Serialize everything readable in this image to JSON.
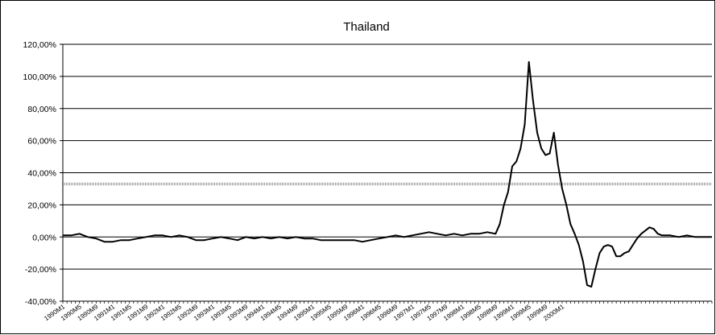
{
  "chart_data": {
    "type": "line",
    "title": "Thailand",
    "xlabel": "",
    "ylabel": "",
    "ylim": [
      -0.4,
      1.2
    ],
    "y_ticks": [
      -0.4,
      -0.2,
      0.0,
      0.2,
      0.4,
      0.6,
      0.8,
      1.0,
      1.2
    ],
    "y_tick_labels": [
      "-40,00%",
      "-20,00%",
      "0,00%",
      "20,00%",
      "40,00%",
      "60,00%",
      "80,00%",
      "100,00%",
      "120,00%"
    ],
    "x_tick_labels": [
      "1990M1",
      "1990M5",
      "1990M9",
      "1991M1",
      "1991M5",
      "1991M9",
      "1992M1",
      "1992M5",
      "1992M9",
      "1993M1",
      "1993M5",
      "1993M9",
      "1994M1",
      "1994M5",
      "1994M9",
      "1995M1",
      "1995M5",
      "1995M9",
      "1996M1",
      "1996M5",
      "1996M9",
      "1997M1",
      "1997M5",
      "1997M9",
      "1998M1",
      "1998M5",
      "1998M9",
      "1999M1",
      "1999M5",
      "1999M9",
      "2000M1"
    ],
    "x_range_months": [
      0,
      126
    ],
    "grid": true,
    "threshold": 0.33,
    "series": [
      {
        "color": "#000000",
        "x": [
          0,
          2,
          4,
          6,
          8,
          10,
          12,
          14,
          16,
          18,
          20,
          22,
          24,
          26,
          28,
          30,
          32,
          34,
          36,
          38,
          40,
          42,
          44,
          46,
          48,
          50,
          52,
          54,
          56,
          58,
          60,
          62,
          64,
          66,
          68,
          70,
          72,
          74,
          76,
          78,
          80,
          82,
          84,
          86,
          88,
          90,
          92,
          94,
          96,
          98,
          100,
          102,
          104,
          105,
          106,
          107,
          108,
          109,
          110,
          111,
          112,
          113,
          114,
          115,
          116,
          117,
          118,
          119,
          120,
          121,
          122,
          123,
          124,
          125,
          126,
          127,
          128,
          129,
          130,
          131,
          132,
          133,
          134,
          135,
          136,
          137,
          138,
          139,
          140,
          141,
          142,
          143,
          144,
          146,
          148,
          150,
          152,
          154,
          156
        ],
        "values": [
          0.01,
          0.01,
          0.02,
          0.0,
          -0.01,
          -0.03,
          -0.03,
          -0.02,
          -0.02,
          -0.01,
          0.0,
          0.01,
          0.01,
          0.0,
          0.01,
          0.0,
          -0.02,
          -0.02,
          -0.01,
          0.0,
          -0.01,
          -0.02,
          0.0,
          -0.01,
          0.0,
          -0.01,
          0.0,
          -0.01,
          0.0,
          -0.01,
          -0.01,
          -0.02,
          -0.02,
          -0.02,
          -0.02,
          -0.02,
          -0.03,
          -0.02,
          -0.01,
          0.0,
          0.01,
          0.0,
          0.01,
          0.02,
          0.03,
          0.02,
          0.01,
          0.02,
          0.01,
          0.02,
          0.02,
          0.03,
          0.02,
          0.08,
          0.2,
          0.28,
          0.44,
          0.47,
          0.55,
          0.7,
          1.09,
          0.85,
          0.65,
          0.55,
          0.51,
          0.52,
          0.65,
          0.45,
          0.3,
          0.2,
          0.08,
          0.02,
          -0.05,
          -0.15,
          -0.3,
          -0.31,
          -0.2,
          -0.1,
          -0.06,
          -0.05,
          -0.06,
          -0.12,
          -0.12,
          -0.1,
          -0.09,
          -0.05,
          -0.01,
          0.02,
          0.04,
          0.06,
          0.05,
          0.02,
          0.01,
          0.01,
          0.0,
          0.01,
          0.0,
          0.0,
          0.0
        ]
      }
    ]
  }
}
